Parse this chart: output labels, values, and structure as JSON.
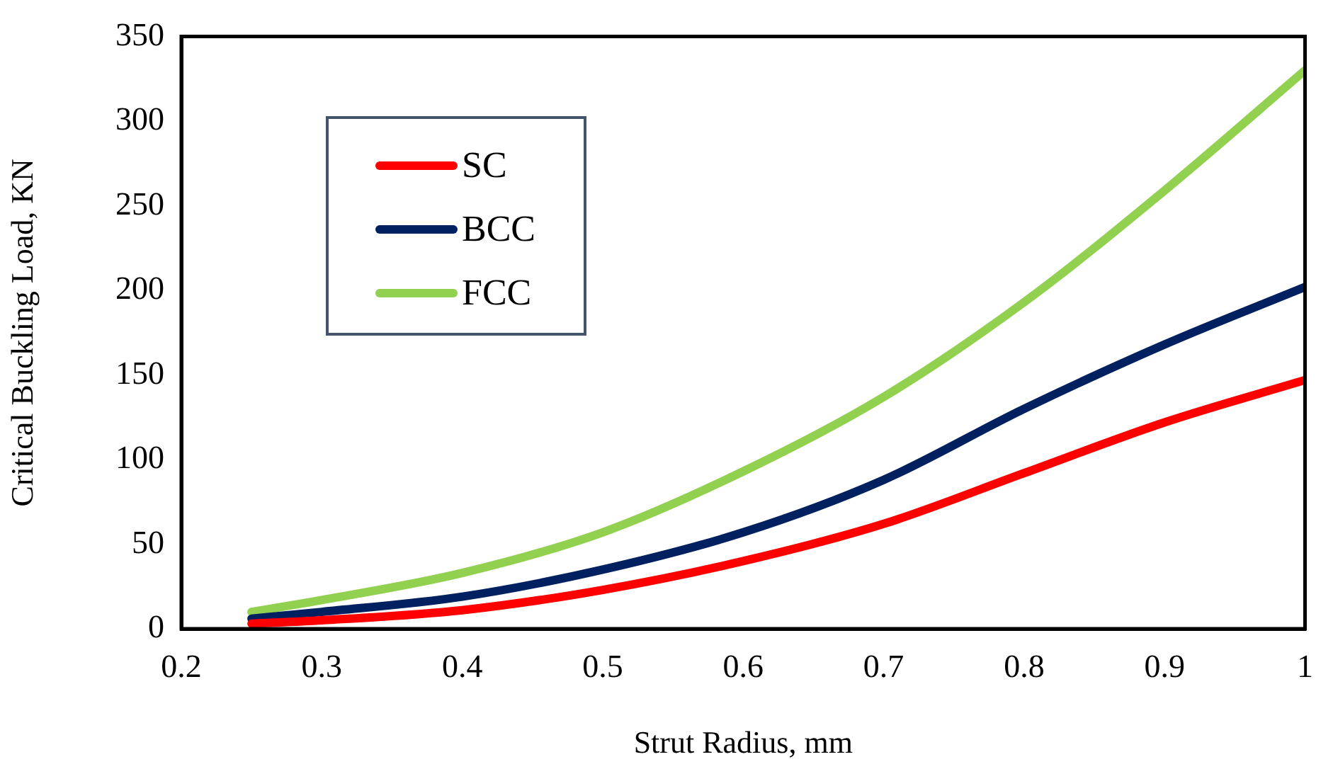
{
  "chart_data": {
    "type": "line",
    "xlabel": "Strut Radius, mm",
    "ylabel": "Critical Buckling Load, KN",
    "x": [
      0.25,
      0.3,
      0.4,
      0.5,
      0.6,
      0.7,
      0.8,
      0.9,
      1.0
    ],
    "series": [
      {
        "name": "SC",
        "color": "#ff0000",
        "values": [
          3,
          5,
          11,
          23,
          40,
          62,
          92,
          122,
          147
        ]
      },
      {
        "name": "BCC",
        "color": "#002060",
        "values": [
          6,
          10,
          19,
          35,
          57,
          88,
          130,
          168,
          202
        ]
      },
      {
        "name": "FCC",
        "color": "#92d050",
        "values": [
          10,
          17,
          33,
          57,
          93,
          137,
          193,
          259,
          330
        ]
      }
    ],
    "xlim": [
      0.2,
      1
    ],
    "xticks": [
      0.2,
      0.3,
      0.4,
      0.5,
      0.6,
      0.7,
      0.8,
      0.9,
      1
    ],
    "ylim": [
      0,
      350
    ],
    "yticks": [
      0,
      50,
      100,
      150,
      200,
      250,
      300,
      350
    ],
    "grid": false,
    "legend": "top left",
    "marker": "none",
    "line_style": "solid"
  }
}
